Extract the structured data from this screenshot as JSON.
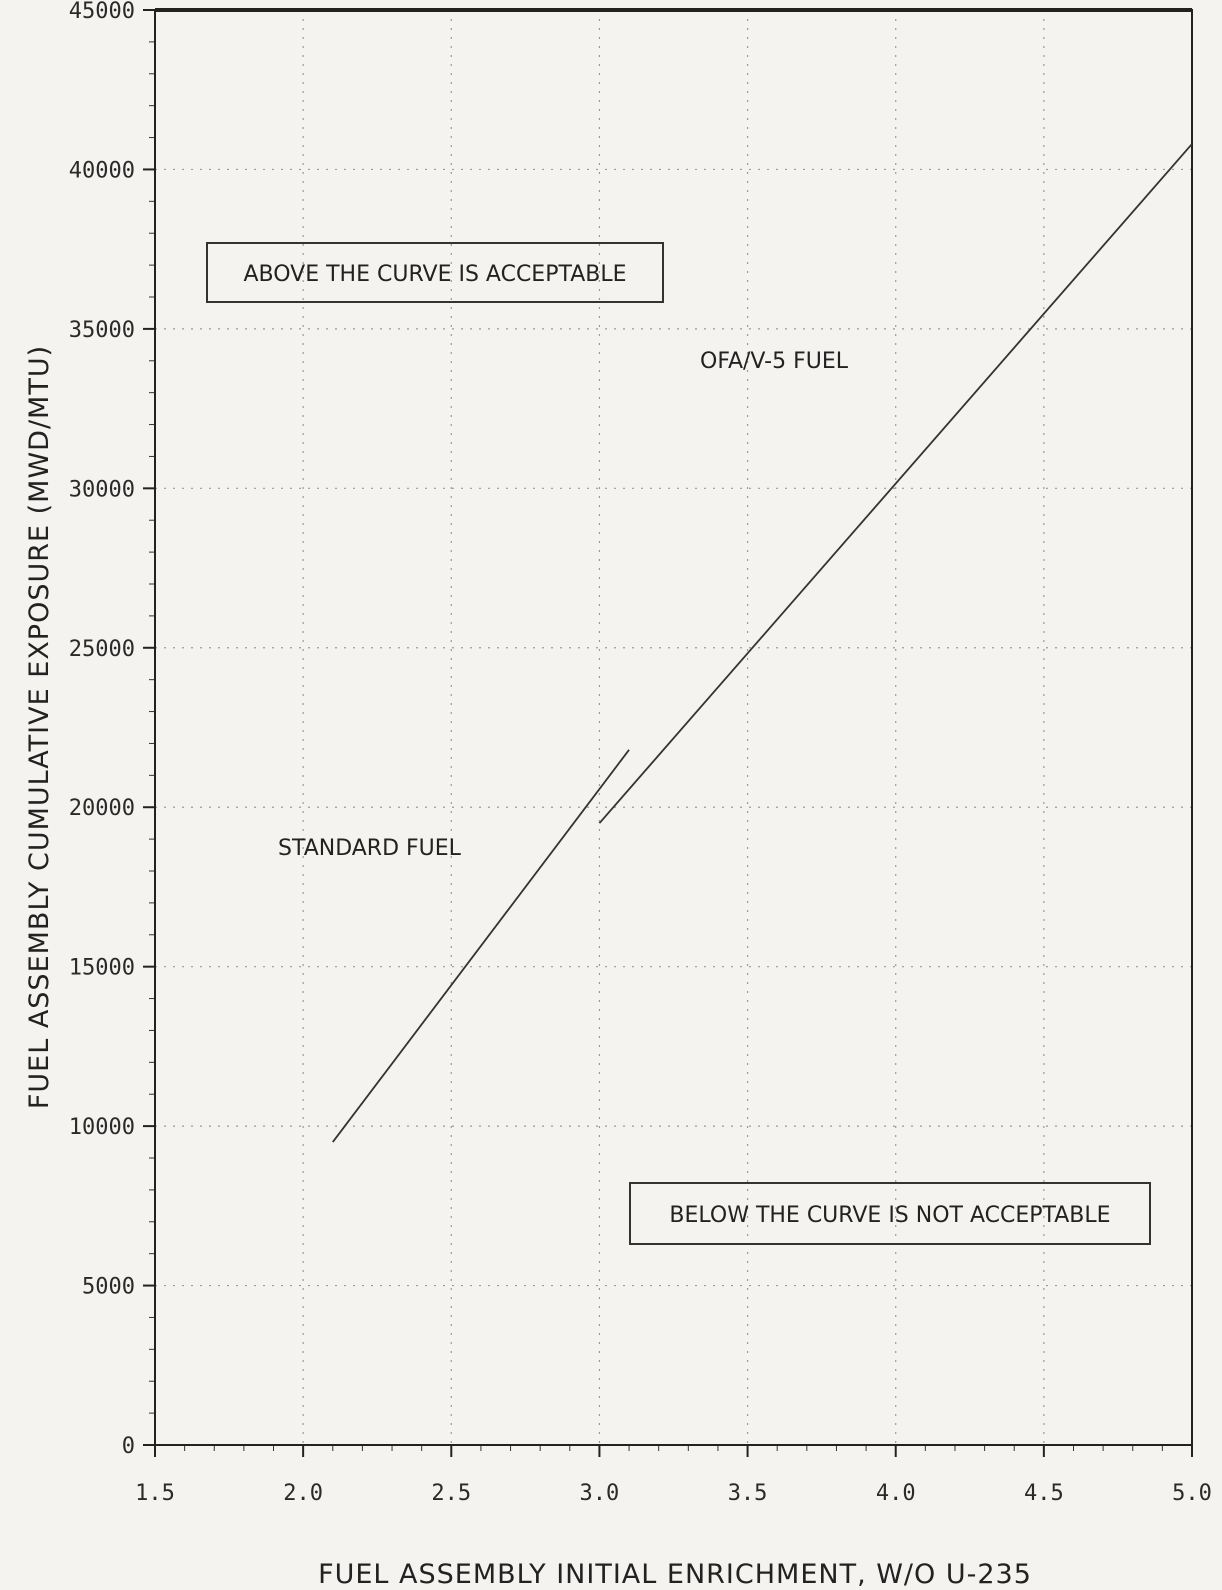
{
  "chart_data": {
    "type": "line",
    "title": "",
    "xlabel": "FUEL ASSEMBLY INITIAL ENRICHMENT, W/O U-235",
    "ylabel": "FUEL ASSEMBLY CUMULATIVE EXPOSURE (MWD/MTU)",
    "xlim": [
      1.5,
      5.0
    ],
    "ylim": [
      0,
      45000
    ],
    "x_ticks": [
      "1.5",
      "2.0",
      "2.5",
      "3.0",
      "3.5",
      "4.0",
      "4.5",
      "5.0"
    ],
    "y_ticks": [
      "0",
      "5000",
      "10000",
      "15000",
      "20000",
      "25000",
      "30000",
      "35000",
      "40000",
      "45000"
    ],
    "grid": true,
    "series": [
      {
        "name": "STANDARD FUEL",
        "x": [
          2.1,
          3.1
        ],
        "y": [
          9500,
          21800
        ]
      },
      {
        "name": "OFA/V-5 FUEL",
        "x": [
          3.0,
          5.0
        ],
        "y": [
          19500,
          40800
        ]
      }
    ],
    "annotations": [
      {
        "text": "ABOVE THE CURVE IS ACCEPTABLE",
        "boxed": true
      },
      {
        "text": "BELOW THE CURVE IS NOT ACCEPTABLE",
        "boxed": true
      }
    ]
  }
}
